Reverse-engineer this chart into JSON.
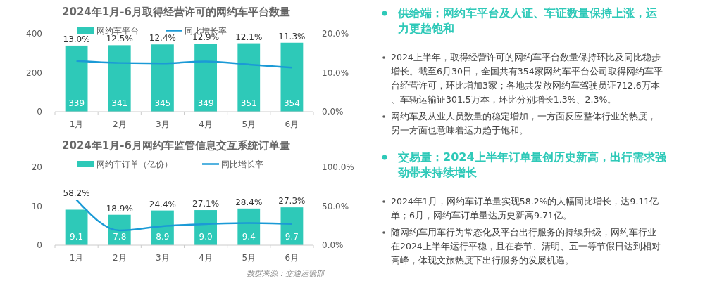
{
  "chart_data": [
    {
      "type": "bar",
      "title": "2024年1月-6月取得经营许可的网约车平台数量",
      "categories": [
        "1月",
        "2月",
        "3月",
        "4月",
        "5月",
        "6月"
      ],
      "series": [
        {
          "name": "网约车平台",
          "type": "bar",
          "color": "#2ec9b8",
          "values": [
            339,
            341,
            345,
            349,
            351,
            354
          ],
          "value_labels": [
            "339",
            "341",
            "345",
            "349",
            "351",
            "354"
          ]
        },
        {
          "name": "同比增长率",
          "type": "line",
          "axis": "y2",
          "color": "#1b9ad6",
          "values": [
            13.0,
            12.5,
            12.4,
            12.9,
            12.1,
            11.3
          ],
          "value_labels": [
            "13.0%",
            "12.5%",
            "12.4%",
            "12.9%",
            "12.1%",
            "11.3%"
          ]
        }
      ],
      "ylim": [
        0,
        400
      ],
      "yticks": [
        0,
        200,
        400
      ],
      "y2lim": [
        0,
        20
      ],
      "y2ticks": [
        {
          "value": 0,
          "label": "0.0%"
        },
        {
          "value": 10,
          "label": "10.0%"
        },
        {
          "value": 20,
          "label": "20.0%"
        }
      ],
      "legend": "top",
      "marker": "none"
    },
    {
      "type": "bar",
      "title": "2024年1月-6月网约车监管信息交互系统订单量",
      "categories": [
        "1月",
        "2月",
        "3月",
        "4月",
        "5月",
        "6月"
      ],
      "series": [
        {
          "name": "网约车订单（亿份）",
          "type": "bar",
          "color": "#2ec9b8",
          "values": [
            9.1,
            7.8,
            8.9,
            9.0,
            9.4,
            9.7
          ],
          "value_labels": [
            "9.1",
            "7.8",
            "8.9",
            "9.0",
            "9.4",
            "9.7"
          ]
        },
        {
          "name": "同比增长率",
          "type": "line",
          "axis": "y2",
          "color": "#1b9ad6",
          "values": [
            58.2,
            18.9,
            24.4,
            27.1,
            28.4,
            27.3
          ],
          "value_labels": [
            "58.2%",
            "18.9%",
            "24.4%",
            "27.1%",
            "28.4%",
            "27.3%"
          ]
        }
      ],
      "ylim": [
        0,
        20
      ],
      "yticks": [
        0,
        10,
        20
      ],
      "y2lim": [
        0,
        100
      ],
      "y2ticks": [
        {
          "value": 0,
          "label": "0.0%"
        },
        {
          "value": 50,
          "label": "50.0%"
        },
        {
          "value": 100,
          "label": "100.0%"
        }
      ],
      "legend": "top",
      "marker": "none",
      "annotations": [
        "数据来源：交通运输部"
      ]
    },
    {
      "type": "other",
      "title": "供给端：网约车平台及人证、车证数量保持上涨，运力更趋饱和",
      "annotations": [
        "2024上半年，取得经营许可的网约车平台数量保持环比及同比稳步增长。截至6月30日，全国共有354家网约车平台公司取得网约车平台经营许可，环比增加3家；各地共发放网约车驾驶员证712.6万本、车辆运输证301.5万本，环比分别增长1.3%、2.3%。",
        "网约车及从业人员数量的稳定增加，一方面反应整体行业的热度，另一方面也意味着运力趋于饱和。"
      ]
    },
    {
      "type": "other",
      "title": "交易量：2024上半年订单量创历史新高，出行需求强劲带来持续增长",
      "annotations": [
        "2024年1月，网约车订单量实现58.2%的大幅同比增长，达9.11亿单；6月，网约车订单量达历史新高9.71亿。",
        "随网约车用车行为常态化及平台出行服务的持续升级，网约车行业在2024上半年运行平稳，且在春节、清明、五一等节假日达到相对高峰，体现文旅热度下出行服务的发展机遇。"
      ]
    }
  ]
}
